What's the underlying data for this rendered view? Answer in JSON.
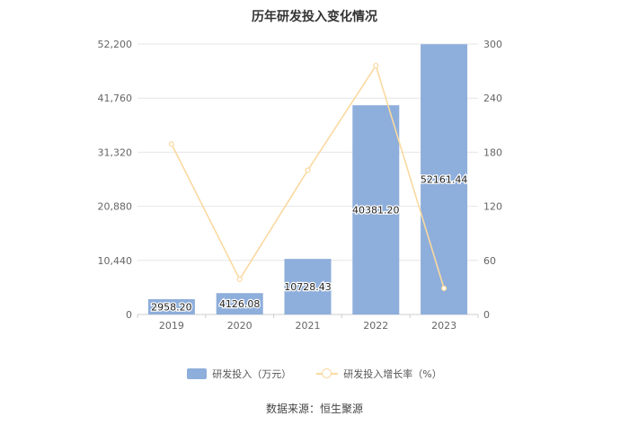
{
  "chart_data": {
    "type": "bar",
    "title": "历年研发投入变化情况",
    "categories": [
      "2019",
      "2020",
      "2021",
      "2022",
      "2023"
    ],
    "series": [
      {
        "name": "研发投入（万元）",
        "type": "bar",
        "axis": "left",
        "values": [
          2958.2,
          4126.08,
          10728.43,
          40381.2,
          52161.44
        ],
        "labels": [
          "2958.20",
          "4126.08",
          "10728.43",
          "40381.20",
          "52161.44"
        ],
        "color": "#8eaedb"
      },
      {
        "name": "研发投入增长率（%）",
        "type": "line",
        "axis": "right",
        "values": [
          189,
          39,
          160,
          276,
          29
        ],
        "color": "#fad9a0"
      }
    ],
    "y_left": {
      "ylim": [
        0,
        52200
      ],
      "ticks": [
        0,
        10440,
        20880,
        31320,
        41760,
        52200
      ],
      "tick_labels": [
        "0",
        "10,440",
        "20,880",
        "31,320",
        "41,760",
        "52,200"
      ]
    },
    "y_right": {
      "ylim": [
        0,
        300
      ],
      "ticks": [
        0,
        60,
        120,
        180,
        240,
        300
      ],
      "tick_labels": [
        "0",
        "60",
        "120",
        "180",
        "240",
        "300"
      ]
    },
    "grid": true,
    "legend_position": "bottom-center"
  },
  "legend": {
    "bar_label": "研发投入（万元）",
    "line_label": "研发投入增长率（%）"
  },
  "source": "数据来源：恒生聚源"
}
